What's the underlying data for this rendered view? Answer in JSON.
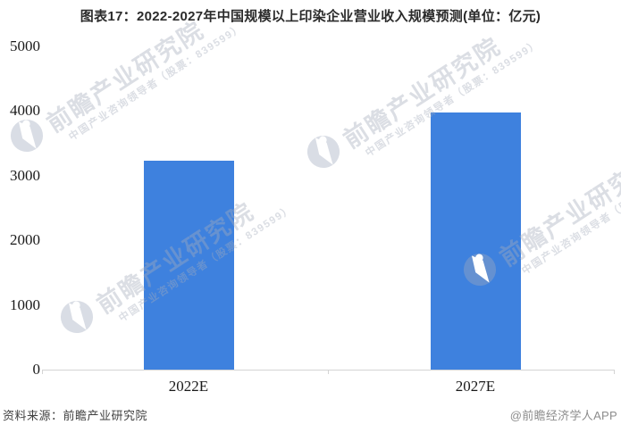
{
  "title": "图表17：2022-2027年中国规模以上印染企业营业收入规模预测(单位：亿元)",
  "footer": {
    "source": "资料来源：前瞻产业研究院",
    "credit": "@前瞻经济学人APP"
  },
  "watermark": {
    "brand": "前瞻产业研究院",
    "tagline": "中国产业咨询领导者（股票：839599）",
    "logo_name": "qianzhan-logo"
  },
  "colors": {
    "bar": "#3E81DE",
    "axis": "#D4D4D4",
    "watermark": "rgba(165,173,188,0.40)"
  },
  "chart_data": {
    "type": "bar",
    "title": "图表17：2022-2027年中国规模以上印染企业营业收入规模预测(单位：亿元)",
    "categories": [
      "2022E",
      "2027E"
    ],
    "values": [
      3235,
      3980
    ],
    "unit": "亿元",
    "xlabel": "",
    "ylabel": "",
    "ylim": [
      0,
      5000
    ],
    "yticks": [
      0,
      1000,
      2000,
      3000,
      4000,
      5000
    ],
    "grid": false,
    "legend": false
  }
}
